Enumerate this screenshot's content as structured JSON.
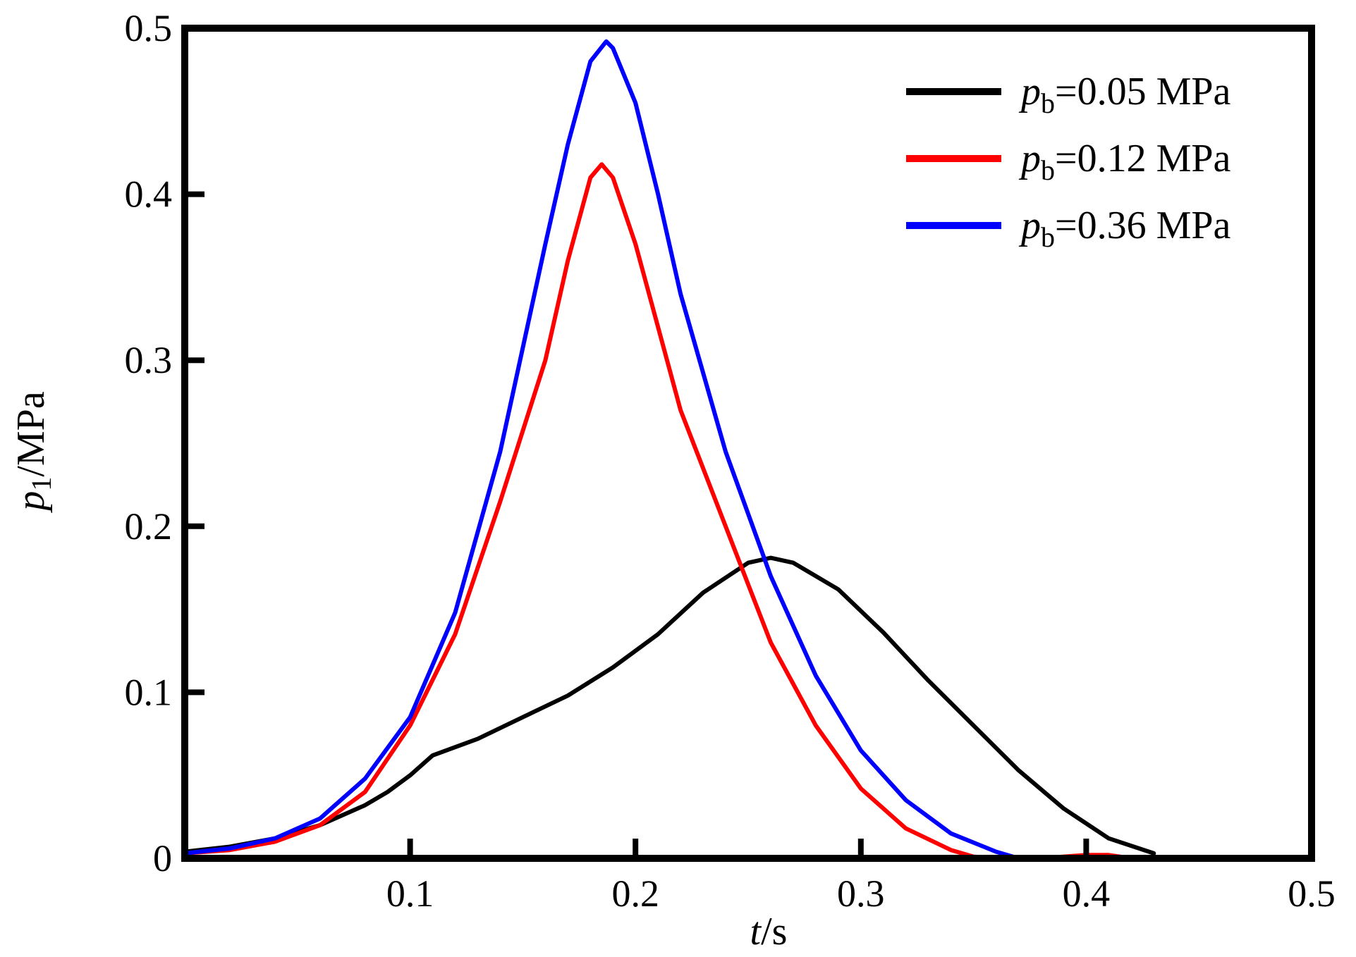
{
  "chart_data": {
    "type": "line",
    "xlabel_var": "t",
    "xlabel_unit": "/s",
    "ylabel_var": "p",
    "ylabel_sub": "1",
    "ylabel_unit": "/MPa",
    "xlim": [
      0,
      0.5
    ],
    "ylim": [
      0,
      0.5
    ],
    "xticks": [
      0.1,
      0.2,
      0.3,
      0.4,
      0.5
    ],
    "yticks": [
      0,
      0.1,
      0.2,
      0.3,
      0.4,
      0.5
    ],
    "xtick_labels": [
      "0.1",
      "0.2",
      "0.3",
      "0.4",
      "0.5"
    ],
    "ytick_labels": [
      "0",
      "0.1",
      "0.2",
      "0.3",
      "0.4",
      "0.5"
    ],
    "grid": false,
    "legend_position": "top-right",
    "series": [
      {
        "name_var": "p",
        "name_sub": "b",
        "name_value": "=0.05 MPa",
        "color": "#000000",
        "x": [
          0.0,
          0.02,
          0.04,
          0.06,
          0.08,
          0.09,
          0.1,
          0.11,
          0.13,
          0.15,
          0.17,
          0.19,
          0.21,
          0.23,
          0.25,
          0.26,
          0.27,
          0.29,
          0.31,
          0.33,
          0.35,
          0.37,
          0.39,
          0.41,
          0.43
        ],
        "y": [
          0.004,
          0.007,
          0.012,
          0.02,
          0.032,
          0.04,
          0.05,
          0.062,
          0.072,
          0.085,
          0.098,
          0.115,
          0.135,
          0.16,
          0.178,
          0.181,
          0.178,
          0.162,
          0.136,
          0.107,
          0.08,
          0.053,
          0.03,
          0.012,
          0.003
        ]
      },
      {
        "name_var": "p",
        "name_sub": "b",
        "name_value": "=0.12 MPa",
        "color": "#ff0000",
        "x": [
          0.0,
          0.02,
          0.04,
          0.06,
          0.08,
          0.1,
          0.12,
          0.14,
          0.16,
          0.17,
          0.18,
          0.185,
          0.19,
          0.2,
          0.21,
          0.22,
          0.24,
          0.26,
          0.28,
          0.3,
          0.32,
          0.34,
          0.35,
          0.36,
          0.38,
          0.4,
          0.41,
          0.42
        ],
        "y": [
          0.003,
          0.005,
          0.01,
          0.02,
          0.04,
          0.08,
          0.135,
          0.215,
          0.3,
          0.36,
          0.41,
          0.418,
          0.41,
          0.37,
          0.32,
          0.27,
          0.2,
          0.13,
          0.08,
          0.042,
          0.018,
          0.005,
          0.001,
          0.0,
          0.0,
          0.002,
          0.002,
          0.0
        ]
      },
      {
        "name_var": "p",
        "name_sub": "b",
        "name_value": "=0.36 MPa",
        "color": "#0000ff",
        "x": [
          0.0,
          0.02,
          0.04,
          0.06,
          0.08,
          0.1,
          0.12,
          0.14,
          0.16,
          0.17,
          0.18,
          0.187,
          0.19,
          0.2,
          0.21,
          0.22,
          0.24,
          0.26,
          0.28,
          0.3,
          0.32,
          0.34,
          0.36,
          0.37,
          0.38
        ],
        "y": [
          0.003,
          0.006,
          0.012,
          0.024,
          0.048,
          0.085,
          0.148,
          0.245,
          0.37,
          0.43,
          0.48,
          0.492,
          0.488,
          0.455,
          0.4,
          0.34,
          0.245,
          0.17,
          0.11,
          0.065,
          0.035,
          0.015,
          0.004,
          0.0,
          0.0
        ]
      }
    ]
  }
}
